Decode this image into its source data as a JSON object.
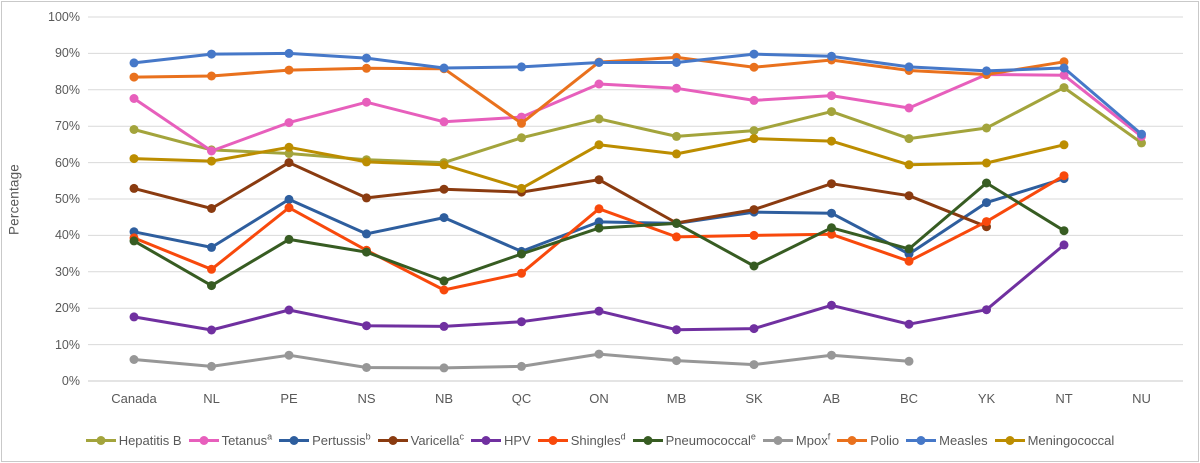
{
  "chart_data": {
    "type": "line",
    "title": "",
    "xlabel": "",
    "ylabel": "Percentage",
    "ylim": [
      0,
      100
    ],
    "ytick_step": 10,
    "ytick_labels": [
      "0%",
      "10%",
      "20%",
      "30%",
      "40%",
      "50%",
      "60%",
      "70%",
      "80%",
      "90%",
      "100%"
    ],
    "grid": true,
    "legend_position": "bottom",
    "marker": "circle",
    "categories": [
      "Canada",
      "NL",
      "PE",
      "NS",
      "NB",
      "QC",
      "ON",
      "MB",
      "SK",
      "AB",
      "BC",
      "YK",
      "NT",
      "NU"
    ],
    "series": [
      {
        "name": "Hepatitis B",
        "sup": "",
        "color": "#A3A43C",
        "values": [
          69.1,
          63.5,
          62.5,
          60.8,
          60.0,
          66.8,
          72.0,
          67.2,
          68.8,
          74.0,
          66.6,
          69.5,
          80.6,
          65.4
        ]
      },
      {
        "name": "Tetanus",
        "sup": "a",
        "color": "#E75FBC",
        "values": [
          77.6,
          63.2,
          71.0,
          76.6,
          71.2,
          72.5,
          81.6,
          80.4,
          77.1,
          78.4,
          75.0,
          84.2,
          84.0,
          67.2
        ]
      },
      {
        "name": "Pertussis",
        "sup": "b",
        "color": "#2E5E9E",
        "values": [
          41.0,
          36.7,
          49.9,
          40.4,
          44.9,
          35.6,
          43.7,
          43.3,
          46.4,
          46.1,
          34.9,
          49.0,
          55.6,
          null
        ]
      },
      {
        "name": "Varicella",
        "sup": "c",
        "color": "#8A3B10",
        "values": [
          52.9,
          47.4,
          60.0,
          50.3,
          52.7,
          51.9,
          55.3,
          43.4,
          47.1,
          54.2,
          50.9,
          42.4,
          null,
          null
        ]
      },
      {
        "name": "HPV",
        "sup": "",
        "color": "#7030A0",
        "values": [
          17.6,
          14.0,
          19.5,
          15.2,
          15.0,
          16.3,
          19.2,
          14.1,
          14.4,
          20.8,
          15.6,
          19.6,
          37.4,
          null
        ]
      },
      {
        "name": "Shingles",
        "sup": "d",
        "color": "#F8490C",
        "values": [
          39.3,
          30.7,
          47.6,
          35.9,
          25.0,
          29.6,
          47.3,
          39.6,
          40.0,
          40.3,
          32.9,
          43.8,
          56.4,
          null
        ]
      },
      {
        "name": "Pneumococcal",
        "sup": "e",
        "color": "#375C22",
        "values": [
          38.5,
          26.2,
          38.9,
          35.4,
          27.5,
          34.9,
          42.0,
          43.3,
          31.6,
          42.1,
          36.3,
          54.4,
          41.3,
          null
        ]
      },
      {
        "name": "Mpox",
        "sup": "f",
        "color": "#979797",
        "values": [
          5.9,
          4.0,
          7.1,
          3.7,
          3.6,
          4.0,
          7.4,
          5.6,
          4.5,
          7.1,
          5.4,
          null,
          null,
          null
        ]
      },
      {
        "name": "Polio",
        "sup": "",
        "color": "#E9711D",
        "values": [
          83.5,
          83.8,
          85.4,
          85.9,
          85.8,
          70.8,
          87.6,
          88.9,
          86.2,
          88.2,
          85.3,
          84.2,
          87.7,
          null
        ]
      },
      {
        "name": "Measles",
        "sup": "",
        "color": "#4678C8",
        "values": [
          87.4,
          89.8,
          90.0,
          88.7,
          86.0,
          86.3,
          87.5,
          87.5,
          89.8,
          89.2,
          86.3,
          85.2,
          86.0,
          67.8
        ]
      },
      {
        "name": "Meningococcal",
        "sup": "",
        "color": "#BC8D00",
        "values": [
          61.1,
          60.4,
          64.2,
          60.2,
          59.4,
          52.9,
          64.9,
          62.4,
          66.6,
          65.9,
          59.4,
          59.9,
          64.9,
          null
        ]
      }
    ],
    "style": {
      "gridline_color": "#D9D9D9",
      "axis_line_color": "#C9C9C9",
      "text_color": "#595959",
      "background": "#FFFFFF"
    }
  }
}
